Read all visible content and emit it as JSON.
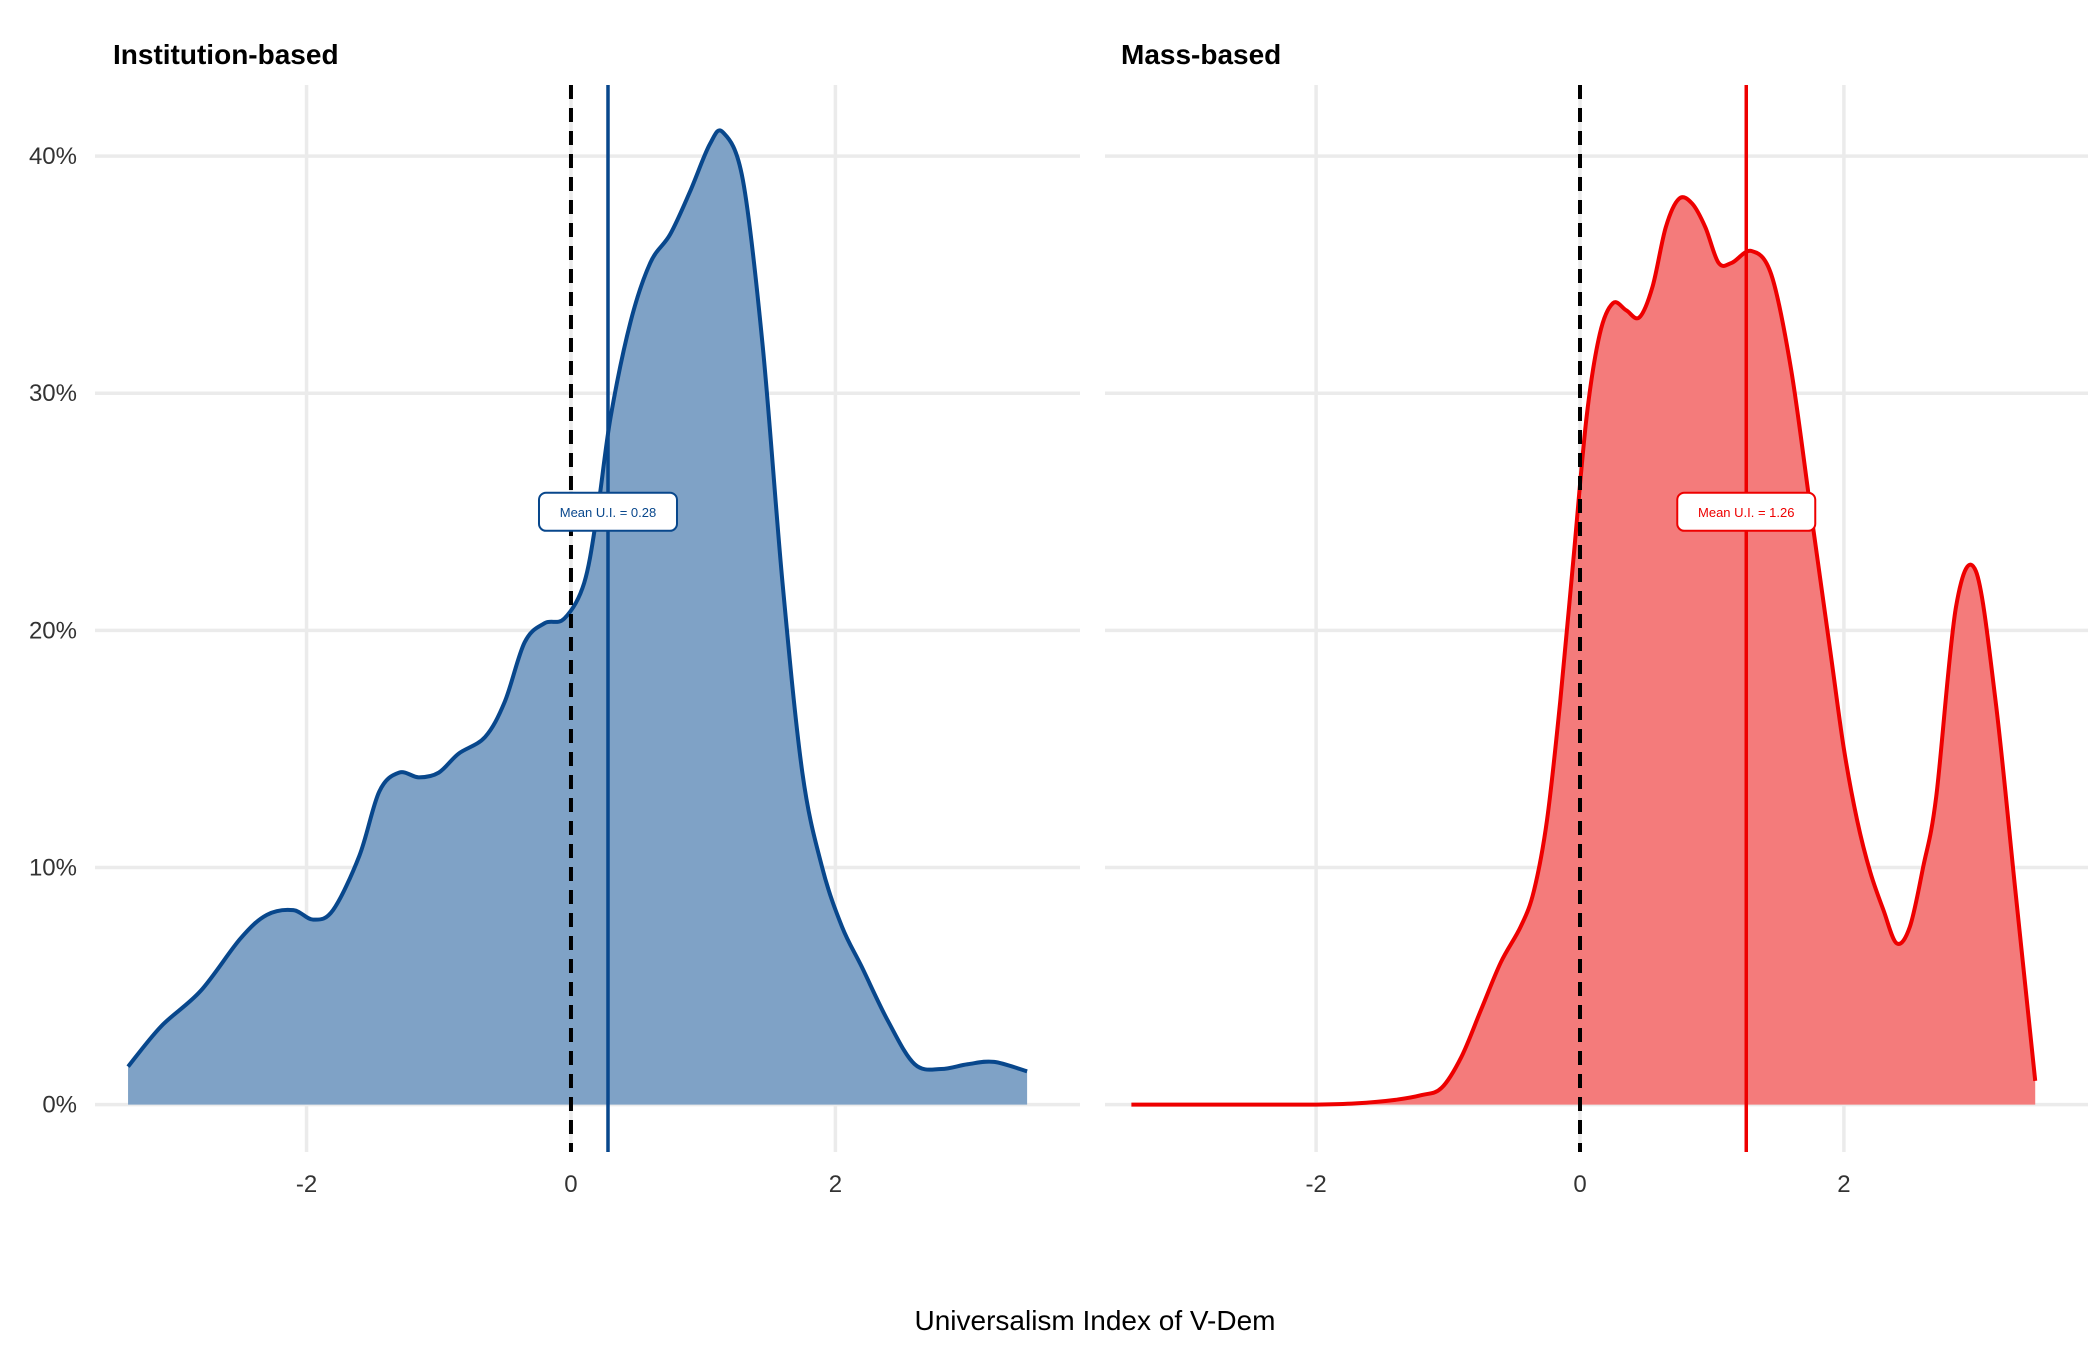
{
  "chart_data": {
    "type": "area",
    "xlabel": "Universalism Index of V-Dem",
    "ylabel": "",
    "y_format": "percent",
    "shared_y_ticks": [
      0,
      0.1,
      0.2,
      0.3,
      0.4
    ],
    "shared_y_tick_labels": [
      "0%",
      "10%",
      "20%",
      "30%",
      "40%"
    ],
    "x_ticks": [
      -2,
      0,
      2
    ],
    "x_tick_labels": [
      "-2",
      "0",
      "2"
    ],
    "grid": true,
    "legend": "none",
    "reference_line": {
      "x": 0,
      "style": "dashed",
      "color": "#000000"
    },
    "panels": [
      {
        "title": "Institution-based",
        "color": "#08478C",
        "fill": "#7FA2C6",
        "xlim": [
          -3.6,
          3.85
        ],
        "ylim": [
          -0.02,
          0.43
        ],
        "mean": 0.28,
        "annotation": "Mean U.I. = 0.28",
        "x": [
          -3.35,
          -3.1,
          -2.8,
          -2.5,
          -2.3,
          -2.1,
          -1.95,
          -1.8,
          -1.6,
          -1.45,
          -1.3,
          -1.15,
          -1.0,
          -0.85,
          -0.65,
          -0.5,
          -0.35,
          -0.2,
          -0.05,
          0.1,
          0.2,
          0.3,
          0.45,
          0.6,
          0.75,
          0.9,
          1.05,
          1.15,
          1.3,
          1.45,
          1.6,
          1.75,
          1.9,
          2.05,
          2.2,
          2.4,
          2.6,
          2.8,
          3.0,
          3.2,
          3.45
        ],
        "y": [
          0.016,
          0.033,
          0.048,
          0.07,
          0.08,
          0.082,
          0.078,
          0.082,
          0.105,
          0.132,
          0.14,
          0.138,
          0.14,
          0.148,
          0.155,
          0.17,
          0.195,
          0.203,
          0.205,
          0.22,
          0.25,
          0.29,
          0.33,
          0.355,
          0.367,
          0.385,
          0.405,
          0.41,
          0.39,
          0.32,
          0.22,
          0.14,
          0.1,
          0.075,
          0.058,
          0.035,
          0.017,
          0.015,
          0.017,
          0.018,
          0.014
        ]
      },
      {
        "title": "Mass-based",
        "color": "#EE0000",
        "fill": "#F47B7B",
        "xlim": [
          -3.6,
          3.85
        ],
        "ylim": [
          -0.02,
          0.43
        ],
        "mean": 1.26,
        "annotation": "Mean U.I. = 1.26",
        "x": [
          -3.4,
          -3.0,
          -2.5,
          -2.0,
          -1.7,
          -1.4,
          -1.2,
          -1.05,
          -0.9,
          -0.75,
          -0.6,
          -0.45,
          -0.35,
          -0.25,
          -0.15,
          -0.05,
          0.05,
          0.15,
          0.25,
          0.35,
          0.45,
          0.55,
          0.65,
          0.75,
          0.85,
          0.95,
          1.05,
          1.15,
          1.3,
          1.45,
          1.6,
          1.75,
          1.9,
          2.0,
          2.1,
          2.2,
          2.3,
          2.4,
          2.5,
          2.6,
          2.7,
          2.85,
          3.0,
          3.15,
          3.3,
          3.45
        ],
        "y": [
          0.0,
          0.0,
          0.0,
          0.0,
          0.0005,
          0.002,
          0.004,
          0.007,
          0.02,
          0.04,
          0.06,
          0.075,
          0.09,
          0.12,
          0.17,
          0.23,
          0.29,
          0.325,
          0.338,
          0.335,
          0.332,
          0.345,
          0.37,
          0.382,
          0.38,
          0.37,
          0.355,
          0.355,
          0.36,
          0.35,
          0.31,
          0.25,
          0.19,
          0.15,
          0.12,
          0.098,
          0.082,
          0.068,
          0.075,
          0.1,
          0.13,
          0.21,
          0.225,
          0.17,
          0.09,
          0.01
        ]
      }
    ]
  }
}
